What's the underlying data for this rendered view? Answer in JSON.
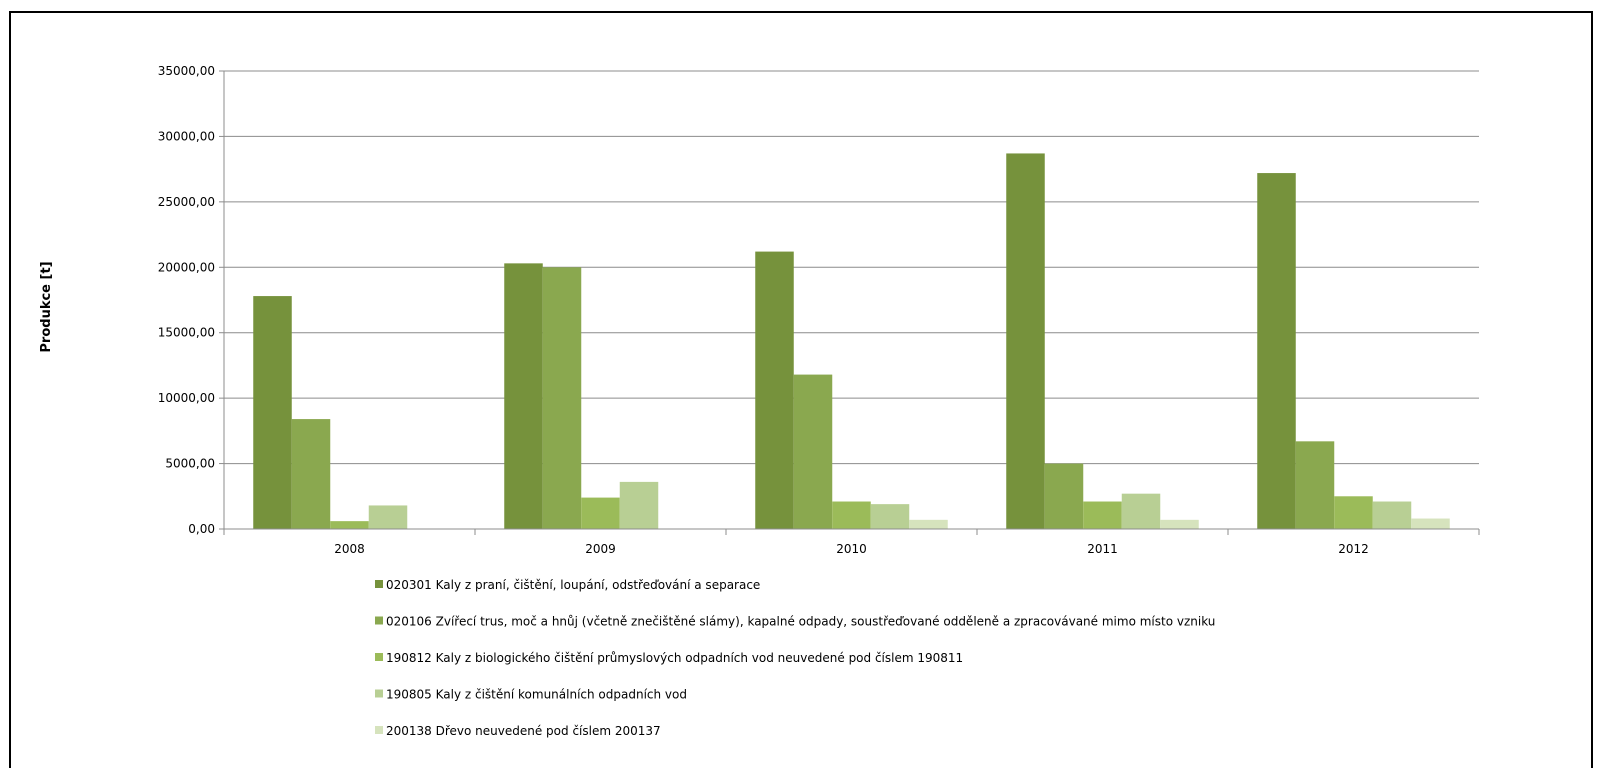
{
  "chart_data": {
    "type": "bar",
    "title": "",
    "xlabel": "",
    "ylabel": "Produkce [t]",
    "ylim": [
      0,
      35000
    ],
    "yticks": [
      0,
      5000,
      10000,
      15000,
      20000,
      25000,
      30000,
      35000
    ],
    "ytick_labels": [
      "0,00",
      "5000,00",
      "10000,00",
      "15000,00",
      "20000,00",
      "25000,00",
      "30000,00",
      "35000,00"
    ],
    "grid": true,
    "legend_position": "bottom",
    "categories": [
      "2008",
      "2009",
      "2010",
      "2011",
      "2012"
    ],
    "series": [
      {
        "name": "020301 Kaly z praní, čištění, loupání, odstřeďování a separace",
        "color": "#76923c",
        "values": [
          17800,
          20300,
          21200,
          28700,
          27200
        ]
      },
      {
        "name": "020106 Zvířecí trus, moč a hnůj (včetně znečištěné slámy), kapalné odpady, soustřeďované odděleně a zpracovávané mimo místo vzniku",
        "color": "#8aa84f",
        "values": [
          8400,
          20000,
          11800,
          5000,
          6700
        ]
      },
      {
        "name": "190812 Kaly z biologického čištění průmyslových odpadních vod neuvedené pod číslem 190811",
        "color": "#9bbb59",
        "values": [
          600,
          2400,
          2100,
          2100,
          2500
        ]
      },
      {
        "name": "190805 Kaly z čištění komunálních odpadních vod",
        "color": "#b8cf94",
        "values": [
          1800,
          3600,
          1900,
          2700,
          2100
        ]
      },
      {
        "name": "200138 Dřevo neuvedené pod číslem 200137",
        "color": "#d6e3bd",
        "values": [
          0,
          0,
          700,
          700,
          800
        ]
      }
    ]
  }
}
